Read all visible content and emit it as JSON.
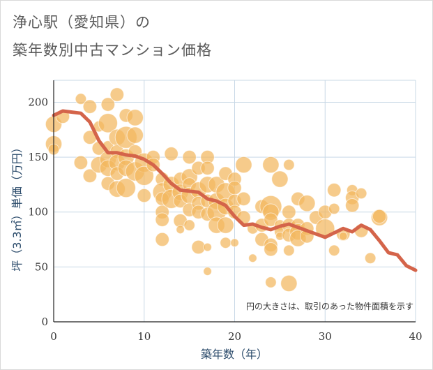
{
  "title_line1": "浄心駅（愛知県）の",
  "title_line2": "築年数別中古マンション価格",
  "colors": {
    "bubble": "#f2b75e",
    "line": "#d4644a",
    "grid": "#c8d8e6",
    "axis": "#222222"
  },
  "chart_data": {
    "type": "scatter",
    "xlabel": "築年数（年）",
    "ylabel": "坪（3.3㎡）単価（万円）",
    "xlim": [
      0,
      40
    ],
    "ylim": [
      0,
      220
    ],
    "xticks": [
      "0",
      "10",
      "20",
      "30",
      "40"
    ],
    "yticks": [
      "0",
      "50",
      "100",
      "150",
      "200"
    ],
    "note": "円の大きさは、取引のあった物件面積を示す",
    "bubbles": [
      [
        0,
        180,
        3
      ],
      [
        0,
        162,
        3
      ],
      [
        0,
        157,
        2
      ],
      [
        1,
        187,
        2.5
      ],
      [
        3,
        203,
        2
      ],
      [
        3,
        145,
        2.5
      ],
      [
        4,
        196,
        2.5
      ],
      [
        4,
        168,
        2.5
      ],
      [
        4,
        133,
        2.5
      ],
      [
        5,
        178,
        2
      ],
      [
        5,
        158,
        2.5
      ],
      [
        5,
        143,
        3
      ],
      [
        6,
        198,
        2.5
      ],
      [
        6,
        181,
        3.5
      ],
      [
        6,
        160,
        2
      ],
      [
        6,
        148,
        3
      ],
      [
        6,
        140,
        3
      ],
      [
        6,
        126,
        2.5
      ],
      [
        7,
        207,
        2.5
      ],
      [
        7,
        168,
        3
      ],
      [
        7,
        155,
        2.5
      ],
      [
        7,
        145,
        3
      ],
      [
        7,
        135,
        2.5
      ],
      [
        7,
        121,
        3
      ],
      [
        8,
        188,
        2.5
      ],
      [
        8,
        168,
        4
      ],
      [
        8,
        150,
        3
      ],
      [
        8,
        140,
        3
      ],
      [
        8,
        122,
        3.5
      ],
      [
        9,
        186,
        3
      ],
      [
        9,
        170,
        3
      ],
      [
        9,
        155,
        2.5
      ],
      [
        9,
        137,
        3.5
      ],
      [
        10,
        145,
        3.5
      ],
      [
        10,
        133,
        3.5
      ],
      [
        10,
        115,
        2.5
      ],
      [
        11,
        150,
        2.5
      ],
      [
        11,
        143,
        2.5
      ],
      [
        12,
        130,
        2.5
      ],
      [
        12,
        118,
        3.5
      ],
      [
        12,
        112,
        2.5
      ],
      [
        12,
        100,
        2.5
      ],
      [
        12,
        93,
        2.5
      ],
      [
        12,
        75,
        2.5
      ],
      [
        13,
        153,
        2.5
      ],
      [
        13,
        125,
        3
      ],
      [
        13,
        112,
        3.5
      ],
      [
        14,
        130,
        2.5
      ],
      [
        14,
        118,
        3
      ],
      [
        14,
        110,
        2.5
      ],
      [
        14,
        92,
        2.5
      ],
      [
        14,
        84,
        1.5
      ],
      [
        15,
        150,
        2.5
      ],
      [
        15,
        132,
        3
      ],
      [
        15,
        125,
        2.5
      ],
      [
        15,
        115,
        3
      ],
      [
        15,
        102,
        2.5
      ],
      [
        15,
        88,
        2
      ],
      [
        16,
        140,
        2.5
      ],
      [
        16,
        120,
        3
      ],
      [
        16,
        108,
        2.5
      ],
      [
        16,
        100,
        2.5
      ],
      [
        16,
        68,
        2.5
      ],
      [
        17,
        150,
        2.5
      ],
      [
        17,
        140,
        2.5
      ],
      [
        17,
        125,
        3
      ],
      [
        17,
        110,
        2.5
      ],
      [
        17,
        98,
        2.5
      ],
      [
        17,
        68,
        1.5
      ],
      [
        17,
        46,
        1.5
      ],
      [
        18,
        125,
        3
      ],
      [
        18,
        110,
        3
      ],
      [
        18,
        100,
        3.5
      ],
      [
        18,
        88,
        3
      ],
      [
        19,
        135,
        2.5
      ],
      [
        19,
        118,
        3.5
      ],
      [
        19,
        105,
        3
      ],
      [
        19,
        88,
        3
      ],
      [
        19,
        72,
        2
      ],
      [
        20,
        130,
        2.5
      ],
      [
        20,
        122,
        2.5
      ],
      [
        20,
        110,
        2.5
      ],
      [
        20,
        100,
        2.5
      ],
      [
        20,
        72,
        1.5
      ],
      [
        21,
        143,
        3
      ],
      [
        21,
        112,
        2.5
      ],
      [
        21,
        95,
        2.5
      ],
      [
        22,
        85,
        2
      ],
      [
        22,
        58,
        1.5
      ],
      [
        23,
        105,
        2.5
      ],
      [
        23,
        88,
        2.5
      ],
      [
        23,
        75,
        2.5
      ],
      [
        24,
        143,
        3
      ],
      [
        24,
        105,
        4
      ],
      [
        24,
        100,
        3
      ],
      [
        24,
        93,
        2.5
      ],
      [
        24,
        70,
        2.5
      ],
      [
        24,
        66,
        2.5
      ],
      [
        24,
        36,
        2
      ],
      [
        25,
        130,
        3
      ],
      [
        25,
        88,
        2
      ],
      [
        25,
        82,
        2
      ],
      [
        25,
        78,
        1.5
      ],
      [
        26,
        143,
        2
      ],
      [
        26,
        100,
        2.5
      ],
      [
        26,
        88,
        2.5
      ],
      [
        26,
        79,
        2.5
      ],
      [
        26,
        65,
        2
      ],
      [
        26,
        35,
        3
      ],
      [
        27,
        112,
        2.5
      ],
      [
        27,
        88,
        2.5
      ],
      [
        27,
        82,
        3
      ],
      [
        27,
        76,
        3
      ],
      [
        28,
        108,
        3
      ],
      [
        28,
        85,
        2.5
      ],
      [
        28,
        78,
        2.5
      ],
      [
        29,
        95,
        2.5
      ],
      [
        30,
        100,
        2.5
      ],
      [
        30,
        85,
        3.5
      ],
      [
        31,
        120,
        2.5
      ],
      [
        31,
        103,
        2
      ],
      [
        31,
        65,
        2
      ],
      [
        32,
        80,
        2.5
      ],
      [
        32,
        78,
        1.5
      ],
      [
        33,
        120,
        2
      ],
      [
        33,
        113,
        2.5
      ],
      [
        33,
        106,
        2.5
      ],
      [
        34,
        117,
        2
      ],
      [
        34,
        83,
        2.5
      ],
      [
        35,
        58,
        2
      ],
      [
        36,
        95,
        3
      ],
      [
        36,
        96,
        2.5
      ]
    ],
    "series": [
      {
        "x": [
          0,
          1,
          3,
          4,
          5,
          6,
          7,
          8,
          9,
          10,
          11,
          12,
          13,
          14,
          15,
          16,
          17,
          18,
          19,
          20,
          21,
          22,
          23,
          24,
          25,
          26,
          27,
          28,
          29,
          30,
          31,
          32,
          33,
          34,
          35,
          36,
          37,
          38,
          39,
          40
        ],
        "values": [
          188,
          192,
          190,
          182,
          165,
          154,
          154,
          152,
          151,
          148,
          143,
          135,
          126,
          120,
          119,
          118,
          112,
          110,
          106,
          96,
          88,
          89,
          86,
          84,
          87,
          89,
          86,
          83,
          80,
          77,
          81,
          85,
          82,
          88,
          84,
          74,
          63,
          61,
          51,
          47
        ]
      }
    ]
  }
}
